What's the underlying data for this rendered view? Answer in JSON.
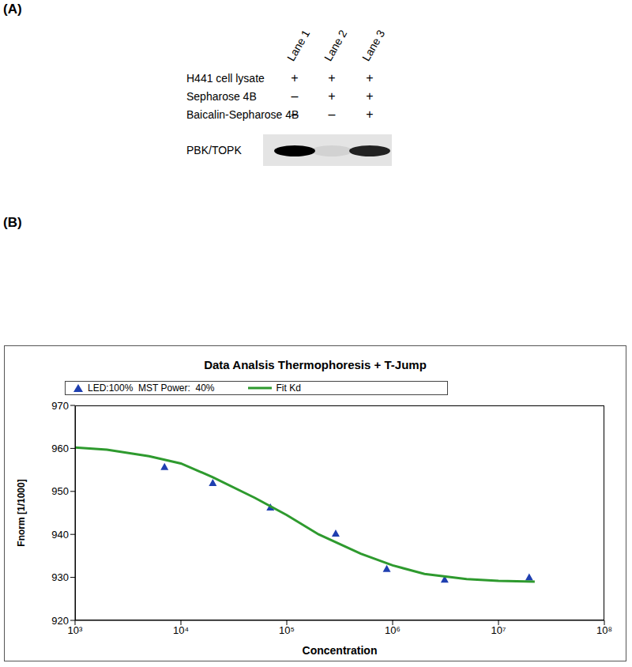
{
  "panel_a": {
    "label": "(A)",
    "lanes": [
      "Lane 1",
      "Lane 2",
      "Lane 3"
    ],
    "rows": [
      {
        "label": "H441 cell lysate",
        "marks": [
          "+",
          "+",
          "+"
        ]
      },
      {
        "label": "Sepharose 4B",
        "marks": [
          "–",
          "+",
          "+"
        ]
      },
      {
        "label": "Baicalin-Sepharose 4B",
        "marks": [
          "–",
          "–",
          "+"
        ]
      }
    ],
    "blot": {
      "label": "PBK/TOPK",
      "band_intensity": [
        1,
        0.08,
        0.85
      ]
    }
  },
  "panel_b_label": "(B)",
  "chart_data": {
    "type": "scatter",
    "title": "Data Analsis Thermophoresis + T-Jump",
    "x_label": "Concentration",
    "y_label": "Fnorm [1/1000]",
    "log": "x",
    "xlim": [
      1000,
      100000000
    ],
    "xticks": [
      {
        "value": 1000,
        "label": "10³"
      },
      {
        "value": 10000,
        "label": "10⁴"
      },
      {
        "value": 100000,
        "label": "10⁵"
      },
      {
        "value": 1000000,
        "label": "10⁶"
      },
      {
        "value": 10000000,
        "label": "10⁷"
      },
      {
        "value": 100000000,
        "label": "10⁸"
      }
    ],
    "ylim": [
      920,
      970
    ],
    "yticks": [
      920,
      930,
      940,
      950,
      960,
      970
    ],
    "grid": false,
    "legend": "top",
    "series": [
      {
        "name": "LED:100%  MST Power:  40%",
        "type": "scatter",
        "marker": "triangle",
        "color": "#1f3fb0",
        "x": [
          7000,
          20000,
          70000,
          290000,
          880000,
          3100000,
          19500000
        ],
        "values": [
          955.7,
          952,
          946.3,
          940.2,
          932,
          929.5,
          930
        ]
      },
      {
        "name": "Fit Kd",
        "type": "line",
        "color": "#2e9a2e",
        "x": [
          1000,
          2000,
          5000,
          10000,
          20000,
          50000,
          100000,
          200000,
          500000,
          1000000,
          2000000,
          5000000,
          10000000,
          22000000
        ],
        "values": [
          960.2,
          959.7,
          958.2,
          956.5,
          953.3,
          948.5,
          944.5,
          940,
          935.5,
          932.8,
          930.8,
          929.6,
          929.2,
          929
        ]
      }
    ]
  }
}
